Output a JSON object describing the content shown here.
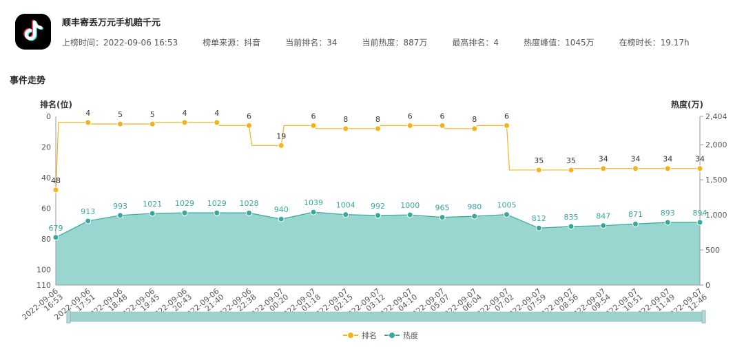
{
  "header": {
    "title": "顺丰寄丢万元手机赔千元",
    "meta": [
      {
        "label": "上榜时间：",
        "value": "2022-09-06 16:53"
      },
      {
        "label": "榜单来源：",
        "value": "抖音"
      },
      {
        "label": "当前排名：",
        "value": "34"
      },
      {
        "label": "当前热度：",
        "value": "887万"
      },
      {
        "label": "最高排名：",
        "value": "4"
      },
      {
        "label": "热度峰值：",
        "value": "1045万"
      },
      {
        "label": "在榜时长：",
        "value": "19.17h"
      }
    ]
  },
  "section_title": "事件走势",
  "icons": {
    "logo": "tiktok-logo-icon"
  },
  "colors": {
    "rank": "#f5b21b",
    "heat": "#38a89d",
    "heat_fill": "#9ad6d0",
    "axis": "#999999"
  },
  "chart_data": {
    "type": "line",
    "title": "",
    "left_axis": {
      "label": "排名(位)",
      "ticks": [
        "0",
        "20",
        "40",
        "60",
        "80",
        "100",
        "110"
      ],
      "range": [
        110,
        0
      ],
      "inverted": true
    },
    "right_axis": {
      "label": "热度(万)",
      "ticks": [
        "0",
        "500",
        "1,000",
        "1,500",
        "2,000",
        "2,404"
      ],
      "range": [
        0,
        2404
      ]
    },
    "x_categories": [
      "2022-09-06 16:53",
      "2022-09-06 17:51",
      "2022-09-06 18:48",
      "2022-09-06 19:45",
      "2022-09-06 20:43",
      "2022-09-06 21:40",
      "2022-09-06 22:38",
      "2022-09-07 00:20",
      "2022-09-07 01:18",
      "2022-09-07 02:15",
      "2022-09-07 03:12",
      "2022-09-07 04:10",
      "2022-09-07 05:07",
      "2022-09-07 06:04",
      "2022-09-07 07:02",
      "2022-09-07 07:59",
      "2022-09-07 08:56",
      "2022-09-07 09:54",
      "2022-09-07 10:51",
      "2022-09-07 11:49",
      "2022-09-07 12:46"
    ],
    "series": [
      {
        "name": "排名",
        "axis": "left",
        "type": "line",
        "values": [
          48,
          4,
          5,
          5,
          4,
          4,
          6,
          19,
          6,
          8,
          8,
          6,
          6,
          8,
          6,
          35,
          35,
          34,
          34,
          34,
          34
        ],
        "labels": [
          "48",
          "4",
          "5",
          "5",
          "4",
          "4",
          "6",
          "19",
          "6",
          "8",
          "8",
          "6",
          "6",
          "8",
          "6",
          "35",
          "35",
          "34",
          "34",
          "34",
          "34"
        ]
      },
      {
        "name": "热度",
        "axis": "right",
        "type": "area",
        "values": [
          679,
          913,
          993,
          1021,
          1029,
          1029,
          1028,
          940,
          1039,
          1004,
          992,
          1000,
          965,
          980,
          1005,
          812,
          835,
          847,
          871,
          893,
          894
        ],
        "labels": [
          "679",
          "913",
          "993",
          "1021",
          "1029",
          "1029",
          "1028",
          "940",
          "1039",
          "1004",
          "992",
          "1000",
          "965",
          "980",
          "1005",
          "812",
          "835",
          "847",
          "871",
          "893",
          "894"
        ]
      }
    ],
    "legend": {
      "position": "bottom-center",
      "items": [
        "排名",
        "热度"
      ]
    },
    "grid": false,
    "dataZoom": true
  }
}
